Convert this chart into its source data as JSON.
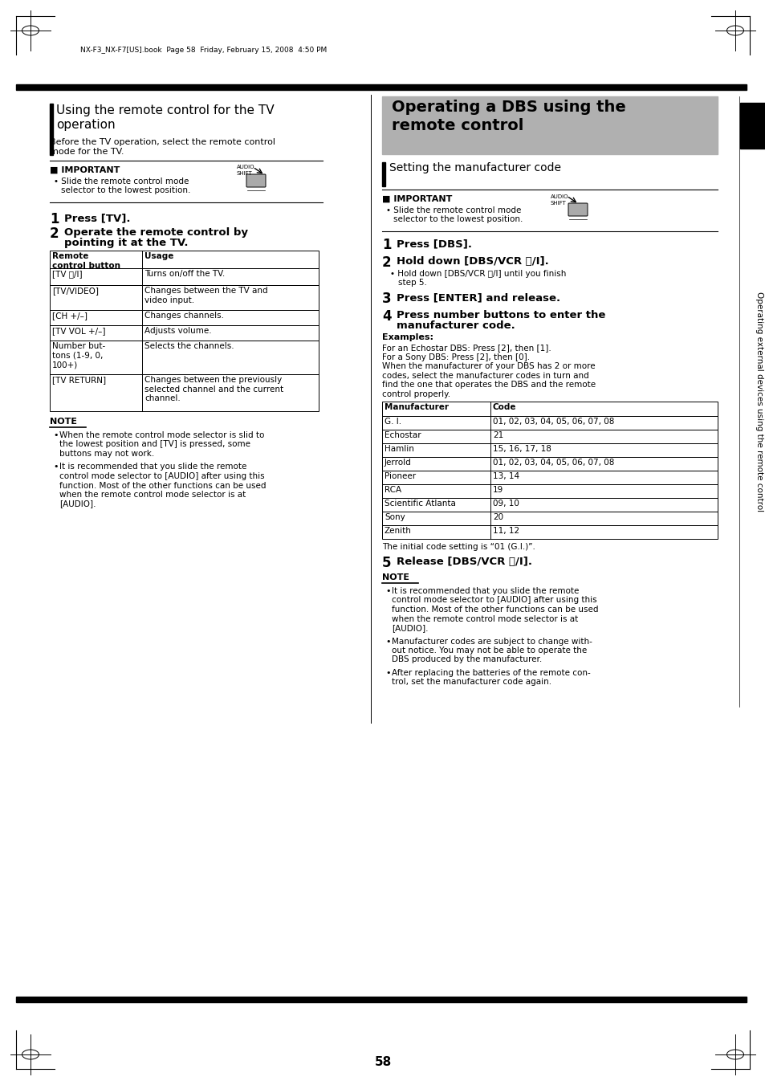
{
  "page_num": "58",
  "header_text": "NX-F3_NX-F7[US].book  Page 58  Friday, February 15, 2008  4:50 PM",
  "sidebar_text": "Operating external devices using the remote control",
  "left_section_title_1": "Using the remote control for the TV",
  "left_section_title_2": "operation",
  "left_intro_1": "Before the TV operation, select the remote control",
  "left_intro_2": "mode for the TV.",
  "tv_table_rows": [
    [
      "[TV ⏻/I]",
      "Turns on/off the TV."
    ],
    [
      "[TV/VIDEO]",
      "Changes between the TV and\nvideo input."
    ],
    [
      "[CH +/–]",
      "Changes channels."
    ],
    [
      "[TV VOL +/–]",
      "Adjusts volume."
    ],
    [
      "Number but-\ntons (1-9, 0,\n100+)",
      "Selects the channels."
    ],
    [
      "[TV RETURN]",
      "Changes between the previously\nselected channel and the current\nchannel."
    ]
  ],
  "note_tv_bullets": [
    "When the remote control mode selector is slid to\nthe lowest position and [TV] is pressed, some\nbuttons may not work.",
    "It is recommended that you slide the remote\ncontrol mode selector to [AUDIO] after using this\nfunction. Most of the other functions can be used\nwhen the remote control mode selector is at\n[AUDIO]."
  ],
  "right_title_1": "Operating a DBS using the",
  "right_title_2": "remote control",
  "right_subsection": "Setting the manufacturer code",
  "right_important_text_1": "Slide the remote control mode",
  "right_important_text_2": "selector to the lowest position.",
  "examples_text": "For an Echostar DBS: Press [2], then [1].\nFor a Sony DBS: Press [2], then [0].\nWhen the manufacturer of your DBS has 2 or more\ncodes, select the manufacturer codes in turn and\nfind the one that operates the DBS and the remote\ncontrol properly.",
  "mfr_table_rows": [
    [
      "G. I.",
      "01, 02, 03, 04, 05, 06, 07, 08"
    ],
    [
      "Echostar",
      "21"
    ],
    [
      "Hamlin",
      "15, 16, 17, 18"
    ],
    [
      "Jerrold",
      "01, 02, 03, 04, 05, 06, 07, 08"
    ],
    [
      "Pioneer",
      "13, 14"
    ],
    [
      "RCA",
      "19"
    ],
    [
      "Scientific Atlanta",
      "09, 10"
    ],
    [
      "Sony",
      "20"
    ],
    [
      "Zenith",
      "11, 12"
    ]
  ],
  "initial_code_text": "The initial code setting is “01 (G.I.)”.",
  "note_dbs_bullets": [
    "It is recommended that you slide the remote\ncontrol mode selector to [AUDIO] after using this\nfunction. Most of the other functions can be used\nwhen the remote control mode selector is at\n[AUDIO].",
    "Manufacturer codes are subject to change with-\nout notice. You may not be able to operate the\nDBS produced by the manufacturer.",
    "After replacing the batteries of the remote con-\ntrol, set the manufacturer code again."
  ],
  "bg_color": "#ffffff",
  "gray_header_color": "#b0b0b0",
  "black": "#000000"
}
